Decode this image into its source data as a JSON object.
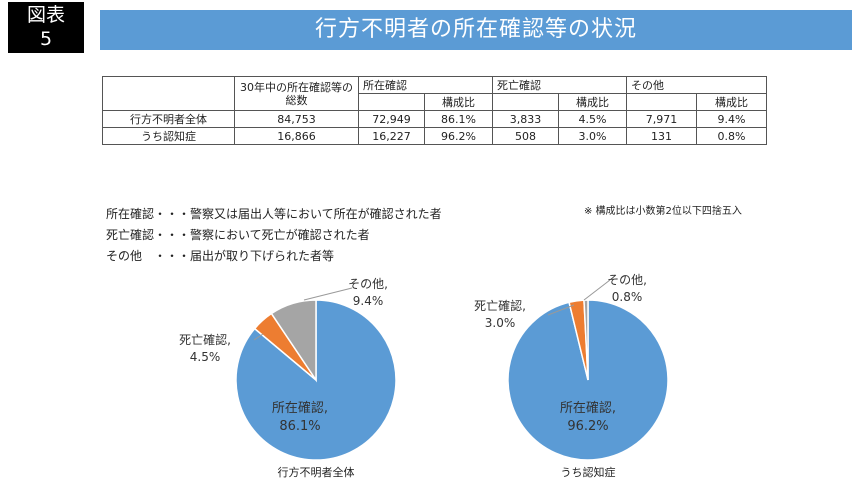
{
  "figure_badge": {
    "line1": "図表",
    "line2": "5"
  },
  "title": "行方不明者の所在確認等の状況",
  "table": {
    "total_header": "30年中の所在確認等の総数",
    "group_headers": [
      "所在確認",
      "死亡確認",
      "その他"
    ],
    "ratio_header": "構成比",
    "rows": [
      {
        "label": "行方不明者全体",
        "total": "84,753",
        "confirmed": "72,949",
        "confirmed_ratio": "86.1%",
        "dead": "3,833",
        "dead_ratio": "4.5%",
        "other": "7,971",
        "other_ratio": "9.4%"
      },
      {
        "label": "うち認知症",
        "total": "16,866",
        "confirmed": "16,227",
        "confirmed_ratio": "96.2%",
        "dead": "508",
        "dead_ratio": "3.0%",
        "other": "131",
        "other_ratio": "0.8%"
      }
    ]
  },
  "note": "※ 構成比は小数第2位以下四捨五入",
  "definitions": [
    "所在確認・・・警察又は届出人等において所在が確認された者",
    "死亡確認・・・警察において死亡が確認された者",
    "その他　・・・届出が取り下げられた者等"
  ],
  "chart_data": [
    {
      "type": "pie",
      "caption": "行方不明者全体",
      "slices": [
        {
          "name": "所在確認",
          "value": 86.1,
          "label": "所在確認,",
          "pct": "86.1%",
          "color": "#5b9bd5"
        },
        {
          "name": "死亡確認",
          "value": 4.5,
          "label": "死亡確認,",
          "pct": "4.5%",
          "color": "#ed7d31"
        },
        {
          "name": "その他",
          "value": 9.4,
          "label": "その他,",
          "pct": "9.4%",
          "color": "#a5a5a5"
        }
      ]
    },
    {
      "type": "pie",
      "caption": "うち認知症",
      "slices": [
        {
          "name": "所在確認",
          "value": 96.2,
          "label": "所在確認,",
          "pct": "96.2%",
          "color": "#5b9bd5"
        },
        {
          "name": "死亡確認",
          "value": 3.0,
          "label": "死亡確認,",
          "pct": "3.0%",
          "color": "#ed7d31"
        },
        {
          "name": "その他",
          "value": 0.8,
          "label": "その他,",
          "pct": "0.8%",
          "color": "#a5a5a5"
        }
      ]
    }
  ]
}
